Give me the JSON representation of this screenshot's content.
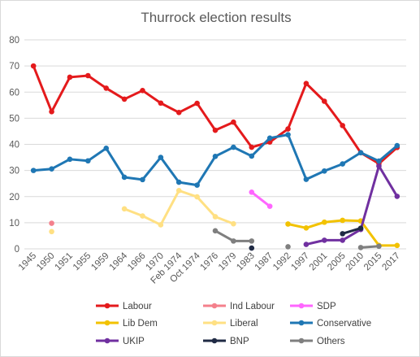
{
  "chart_data": {
    "type": "line",
    "title": "Thurrock election results",
    "xlabel": "",
    "ylabel": "",
    "categories": [
      "1945",
      "1950",
      "1951",
      "1955",
      "1959",
      "1964",
      "1966",
      "1970",
      "Feb 1974",
      "Oct 1974",
      "1976",
      "1979",
      "1983",
      "1987",
      "1992",
      "1997",
      "2001",
      "2005",
      "2010",
      "2015",
      "2017"
    ],
    "ylim": [
      0,
      80
    ],
    "yticks": [
      0,
      10,
      20,
      30,
      40,
      50,
      60,
      70,
      80
    ],
    "grid": true,
    "legend_position": "bottom",
    "series": [
      {
        "name": "Labour",
        "color": "#e41a1c",
        "values": [
          70,
          52.5,
          65.7,
          66.3,
          61.5,
          57.3,
          60.6,
          55.8,
          52.2,
          55.7,
          45.4,
          48.5,
          38.9,
          40.9,
          45.9,
          63.3,
          56.5,
          47.2,
          36.8,
          32.6,
          38.8
        ]
      },
      {
        "name": "Ind Labour",
        "color": "#f4808c",
        "values": [
          null,
          9.8,
          null,
          null,
          null,
          null,
          null,
          null,
          null,
          null,
          null,
          null,
          null,
          null,
          null,
          null,
          null,
          null,
          null,
          null,
          null
        ]
      },
      {
        "name": "SDP",
        "color": "#ff66ff",
        "values": [
          null,
          null,
          null,
          null,
          null,
          null,
          null,
          null,
          null,
          null,
          null,
          null,
          21.7,
          16.3,
          null,
          null,
          null,
          null,
          null,
          null,
          null
        ]
      },
      {
        "name": "Lib Dem",
        "color": "#f2c200",
        "values": [
          null,
          null,
          null,
          null,
          null,
          null,
          null,
          null,
          null,
          null,
          null,
          null,
          null,
          null,
          9.5,
          8.0,
          10.2,
          10.9,
          10.7,
          1.3,
          1.3
        ]
      },
      {
        "name": "Liberal",
        "color": "#ffe083",
        "values": [
          null,
          6.6,
          null,
          null,
          null,
          15.3,
          12.6,
          9.2,
          22.3,
          19.9,
          12.3,
          9.6,
          null,
          null,
          null,
          null,
          null,
          null,
          null,
          null,
          null
        ]
      },
      {
        "name": "Conservative",
        "color": "#1f77b4",
        "values": [
          30.0,
          30.6,
          34.3,
          33.7,
          38.5,
          27.4,
          26.5,
          35.0,
          25.5,
          24.4,
          35.4,
          38.9,
          35.5,
          42.4,
          43.7,
          26.6,
          29.8,
          32.5,
          36.8,
          33.6,
          39.5
        ]
      },
      {
        "name": "UKIP",
        "color": "#7030a0",
        "values": [
          null,
          null,
          null,
          null,
          null,
          null,
          null,
          null,
          null,
          null,
          null,
          null,
          null,
          null,
          null,
          1.7,
          3.3,
          3.3,
          7.4,
          31.7,
          20.1
        ]
      },
      {
        "name": "BNP",
        "color": "#1f2a44",
        "values": [
          null,
          null,
          null,
          null,
          null,
          null,
          null,
          null,
          null,
          null,
          null,
          null,
          0.3,
          null,
          null,
          null,
          null,
          5.8,
          7.9,
          null,
          null
        ]
      },
      {
        "name": "Others",
        "color": "#7f7f7f",
        "values": [
          null,
          null,
          null,
          null,
          null,
          null,
          null,
          null,
          null,
          null,
          6.9,
          3.0,
          3.0,
          null,
          0.8,
          null,
          null,
          null,
          0.5,
          1.0,
          null
        ]
      }
    ]
  }
}
